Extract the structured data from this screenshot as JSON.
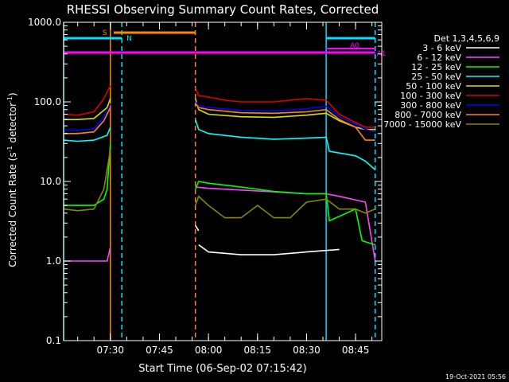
{
  "chart_data": {
    "type": "line",
    "title": "RHESSI Observing Summary Count Rates, Corrected",
    "xlabel": "Start Time (06-Sep-02 07:15:42)",
    "ylabel_main": "Corrected Count Rate (s",
    "ylabel_sup1": "-1",
    "ylabel_mid": " detector",
    "ylabel_sup2": "-1",
    "ylabel_end": ")",
    "y_scale": "log",
    "ylim": [
      0.1,
      1000
    ],
    "x_start": "07:15:42",
    "x_end": "08:53:00",
    "x_ticks": [
      "07:30",
      "07:45",
      "08:00",
      "08:15",
      "08:30",
      "08:45"
    ],
    "y_ticks": [
      "0.1",
      "1.0",
      "10.0",
      "100.0",
      "1000.0"
    ],
    "legend_title": "Det 1,3,4,5,6,9",
    "legend_position": "right",
    "timestamp": "19-Oct-2021 05:56",
    "annotations": {
      "S": "S",
      "N": "N",
      "A0": "A0",
      "A1": "A1"
    },
    "intervals": {
      "night": [
        [
          "07:15:42",
          "07:33:30"
        ],
        [
          "08:36:00",
          "08:51:00"
        ]
      ],
      "saa": [
        [
          "07:31:00",
          "07:56:00"
        ]
      ],
      "attenuator_a0": [
        [
          "08:36:00",
          "08:51:00"
        ]
      ],
      "attenuator_a1": [
        [
          "07:15:42",
          "08:51:00"
        ]
      ]
    },
    "markers": {
      "solid_orange": [
        "07:30:00"
      ],
      "dashed_orange": [
        "07:56:00"
      ],
      "solid_cyan": [
        "07:15:42",
        "08:36:00"
      ],
      "dashed_cyan": [
        "07:33:30",
        "08:51:00"
      ]
    },
    "series": [
      {
        "name": "3 - 6 keV",
        "color": "#ffffff",
        "segments": [
          {
            "x": [
              "07:56",
              "07:57"
            ],
            "y": [
              2.8,
              2.4
            ]
          },
          {
            "x": [
              "07:57",
              "08:00",
              "08:10",
              "08:20",
              "08:30",
              "08:40"
            ],
            "y": [
              1.6,
              1.3,
              1.2,
              1.2,
              1.3,
              1.4
            ]
          }
        ]
      },
      {
        "name": "6 - 12 keV",
        "color": "#ff44ff",
        "segments": [
          {
            "x": [
              "07:15:42",
              "07:20",
              "07:25",
              "07:29",
              "07:30"
            ],
            "y": [
              1.0,
              1.0,
              1.0,
              1.0,
              1.5
            ]
          },
          {
            "x": [
              "07:56",
              "08:00",
              "08:10",
              "08:20",
              "08:30",
              "08:36",
              "08:40",
              "08:48",
              "08:51"
            ],
            "y": [
              8.5,
              8.2,
              7.8,
              7.4,
              7.0,
              7.0,
              6.5,
              5.5,
              1.0
            ]
          }
        ]
      },
      {
        "name": "12 - 25 keV",
        "color": "#00ff00",
        "segments": [
          {
            "x": [
              "07:15:42",
              "07:20",
              "07:25",
              "07:28",
              "07:29",
              "07:30"
            ],
            "y": [
              5.0,
              5.0,
              5.0,
              6.0,
              8.0,
              30.0
            ]
          },
          {
            "x": [
              "07:56",
              "07:57",
              "08:00",
              "08:10",
              "08:20",
              "08:30",
              "08:36",
              "08:37",
              "08:45",
              "08:47",
              "08:51"
            ],
            "y": [
              8.0,
              10.0,
              9.5,
              8.5,
              7.5,
              7.0,
              7.0,
              3.2,
              4.5,
              1.8,
              1.6
            ]
          }
        ]
      },
      {
        "name": "25 - 50 keV",
        "color": "#00ffff",
        "segments": [
          {
            "x": [
              "07:15:42",
              "07:20",
              "07:25",
              "07:29",
              "07:30"
            ],
            "y": [
              33,
              32,
              33,
              38,
              48
            ]
          },
          {
            "x": [
              "07:56",
              "07:57",
              "08:00",
              "08:10",
              "08:20",
              "08:30",
              "08:36",
              "08:37",
              "08:45",
              "08:48",
              "08:51"
            ],
            "y": [
              60,
              45,
              40,
              36,
              34,
              35,
              36,
              24,
              21,
              18,
              14
            ]
          }
        ]
      },
      {
        "name": "50 - 100 keV",
        "color": "#dddd00",
        "segments": [
          {
            "x": [
              "07:15:42",
              "07:20",
              "07:25",
              "07:29",
              "07:30"
            ],
            "y": [
              60,
              60,
              62,
              85,
              110
            ]
          },
          {
            "x": [
              "07:56",
              "07:57",
              "08:00",
              "08:10",
              "08:20",
              "08:30",
              "08:36",
              "08:40",
              "08:45",
              "08:48",
              "08:51"
            ],
            "y": [
              110,
              80,
              70,
              65,
              64,
              68,
              72,
              58,
              48,
              45,
              45
            ]
          }
        ]
      },
      {
        "name": "100 - 300 keV",
        "color": "#dd0000",
        "segments": [
          {
            "x": [
              "07:15:42",
              "07:20",
              "07:25",
              "07:28",
              "07:30"
            ],
            "y": [
              70,
              68,
              75,
              110,
              160
            ]
          },
          {
            "x": [
              "07:56",
              "07:57",
              "08:00",
              "08:05",
              "08:10",
              "08:20",
              "08:30",
              "08:36",
              "08:40",
              "08:45",
              "08:48",
              "08:51"
            ],
            "y": [
              150,
              120,
              115,
              105,
              100,
              100,
              110,
              105,
              70,
              55,
              48,
              48
            ]
          }
        ]
      },
      {
        "name": "300 - 800 keV",
        "color": "#0000ff",
        "segments": [
          {
            "x": [
              "07:15:42",
              "07:20",
              "07:25",
              "07:28",
              "07:30"
            ],
            "y": [
              45,
              44,
              46,
              65,
              95
            ]
          },
          {
            "x": [
              "07:56",
              "07:57",
              "08:00",
              "08:10",
              "08:20",
              "08:30",
              "08:36",
              "08:40",
              "08:45",
              "08:48",
              "08:51"
            ],
            "y": [
              100,
              90,
              85,
              78,
              77,
              82,
              88,
              65,
              52,
              45,
              42
            ]
          }
        ]
      },
      {
        "name": "800 - 7000 keV",
        "color": "#ff8800",
        "segments": [
          {
            "x": [
              "07:15:42",
              "07:20",
              "07:25",
              "07:28",
              "07:30"
            ],
            "y": [
              40,
              40,
              42,
              58,
              85
            ]
          },
          {
            "x": [
              "07:56",
              "07:57",
              "08:00",
              "08:10",
              "08:20",
              "08:30",
              "08:36",
              "08:40",
              "08:45",
              "08:48",
              "08:51"
            ],
            "y": [
              95,
              85,
              80,
              73,
              72,
              75,
              80,
              60,
              48,
              33,
              33
            ]
          }
        ]
      },
      {
        "name": "7000 - 15000 keV",
        "color": "#888800",
        "segments": [
          {
            "x": [
              "07:15:42",
              "07:20",
              "07:25",
              "07:28",
              "07:30"
            ],
            "y": [
              4.5,
              4.3,
              4.5,
              8.0,
              25.0
            ]
          },
          {
            "x": [
              "07:56",
              "07:57",
              "08:00",
              "08:05",
              "08:10",
              "08:15",
              "08:20",
              "08:25",
              "08:30",
              "08:36",
              "08:40",
              "08:45",
              "08:48",
              "08:51"
            ],
            "y": [
              5.0,
              6.5,
              5.0,
              3.5,
              3.5,
              5.0,
              3.5,
              3.5,
              5.5,
              6.0,
              4.5,
              4.5,
              4.0,
              4.5
            ]
          }
        ]
      }
    ]
  }
}
